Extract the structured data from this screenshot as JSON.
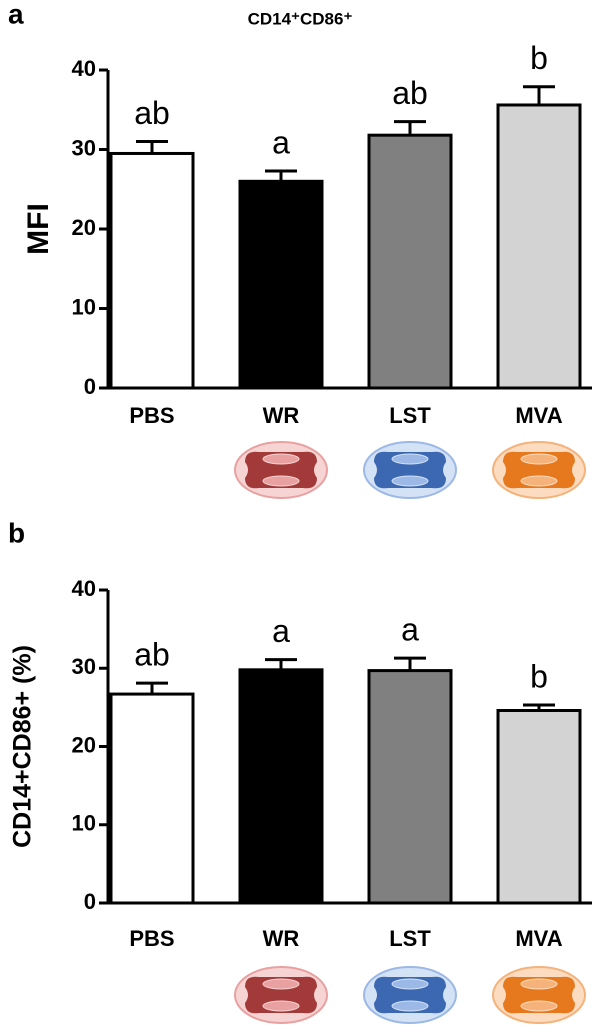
{
  "chart_data": [
    {
      "type": "bar",
      "panel": "a",
      "title": "CD14⁺CD86⁺",
      "ylabel": "MFI",
      "categories": [
        "PBS",
        "WR",
        "LST",
        "MVA"
      ],
      "values": [
        29.5,
        26,
        31.8,
        35.6
      ],
      "errors": [
        1.5,
        1.3,
        1.7,
        2.3
      ],
      "annotations": [
        "ab",
        "a",
        "ab",
        "b"
      ],
      "colors": [
        "#ffffff",
        "#000000",
        "#808080",
        "#d3d3d3"
      ],
      "ylim": [
        0,
        40
      ],
      "yticks": [
        0,
        10,
        20,
        30,
        40
      ]
    },
    {
      "type": "bar",
      "panel": "b",
      "ylabel": "CD14+CD86+ (%)",
      "categories": [
        "PBS",
        "WR",
        "LST",
        "MVA"
      ],
      "values": [
        26.7,
        29.8,
        29.7,
        24.6
      ],
      "errors": [
        1.4,
        1.3,
        1.6,
        0.7
      ],
      "annotations": [
        "ab",
        "a",
        "a",
        "b"
      ],
      "colors": [
        "#ffffff",
        "#000000",
        "#808080",
        "#d3d3d3"
      ],
      "ylim": [
        0,
        40
      ],
      "yticks": [
        0,
        10,
        20,
        30,
        40
      ]
    }
  ]
}
